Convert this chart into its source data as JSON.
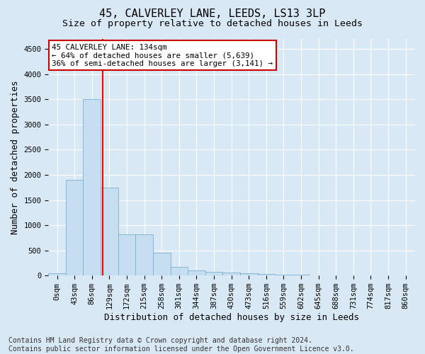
{
  "title": "45, CALVERLEY LANE, LEEDS, LS13 3LP",
  "subtitle": "Size of property relative to detached houses in Leeds",
  "xlabel": "Distribution of detached houses by size in Leeds",
  "ylabel": "Number of detached properties",
  "bin_labels": [
    "0sqm",
    "43sqm",
    "86sqm",
    "129sqm",
    "172sqm",
    "215sqm",
    "258sqm",
    "301sqm",
    "344sqm",
    "387sqm",
    "430sqm",
    "473sqm",
    "516sqm",
    "559sqm",
    "602sqm",
    "645sqm",
    "688sqm",
    "731sqm",
    "774sqm",
    "817sqm",
    "860sqm"
  ],
  "bar_values": [
    50,
    1900,
    3500,
    1750,
    825,
    825,
    450,
    175,
    100,
    70,
    55,
    40,
    30,
    20,
    15,
    10,
    8,
    5,
    3,
    2,
    1
  ],
  "bar_color": "#c6dff0",
  "bar_edge_color": "#7bafd4",
  "vline_x": 2.62,
  "ylim": [
    0,
    4700
  ],
  "yticks": [
    0,
    500,
    1000,
    1500,
    2000,
    2500,
    3000,
    3500,
    4000,
    4500
  ],
  "annotation_title": "45 CALVERLEY LANE: 134sqm",
  "annotation_line1": "← 64% of detached houses are smaller (5,639)",
  "annotation_line2": "36% of semi-detached houses are larger (3,141) →",
  "annotation_box_color": "#ffffff",
  "annotation_box_edge_color": "#cc0000",
  "footer_line1": "Contains HM Land Registry data © Crown copyright and database right 2024.",
  "footer_line2": "Contains public sector information licensed under the Open Government Licence v3.0.",
  "background_color": "#d9e8f5",
  "plot_background_color": "#d9e8f5",
  "grid_color": "#ffffff",
  "title_fontsize": 11,
  "subtitle_fontsize": 9.5,
  "axis_label_fontsize": 9,
  "tick_fontsize": 7.5,
  "footer_fontsize": 7,
  "annotation_fontsize": 7.8
}
